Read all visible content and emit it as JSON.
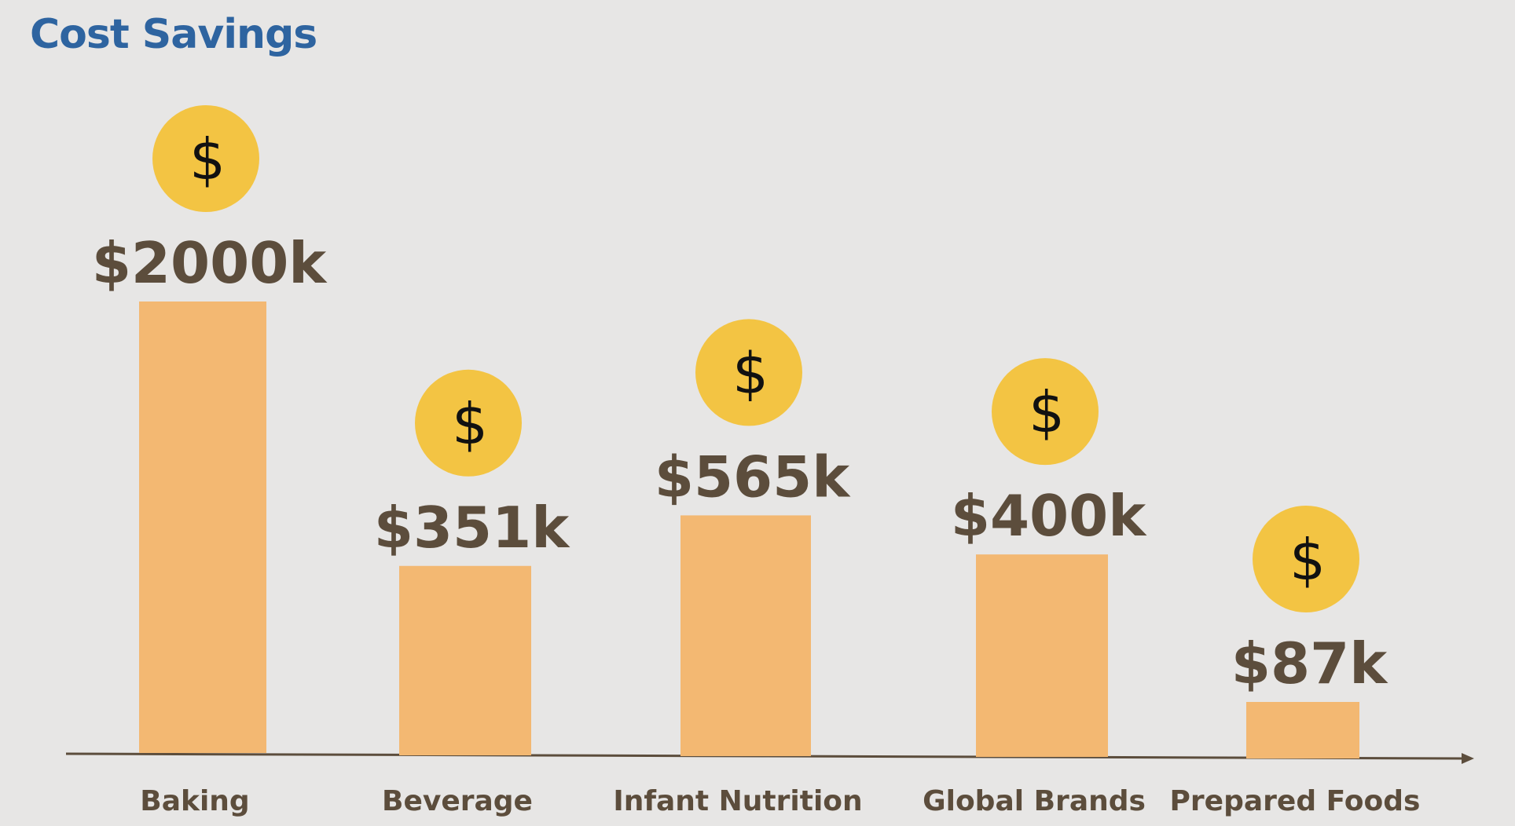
{
  "chart_data": {
    "type": "bar",
    "title": "Cost Savings",
    "categories": [
      "Baking",
      "Beverage",
      "Infant Nutrition",
      "Global Brands",
      "Prepared Foods"
    ],
    "values": [
      2000,
      351,
      565,
      400,
      87
    ],
    "value_labels": [
      "$2000k",
      "$351k",
      "$565k",
      "$400k",
      "$87k"
    ],
    "xlabel": "",
    "ylabel": "",
    "grid": false,
    "legend": "none",
    "marker": {
      "icon": "dollar-coin-icon",
      "glyph": "$",
      "color": "#f3c443"
    },
    "colors": {
      "bar": "#f3b872",
      "text": "#5c4d3c",
      "title": "#2e64a0",
      "axis": "#5c4d3c",
      "background": "#e7e6e5"
    }
  }
}
